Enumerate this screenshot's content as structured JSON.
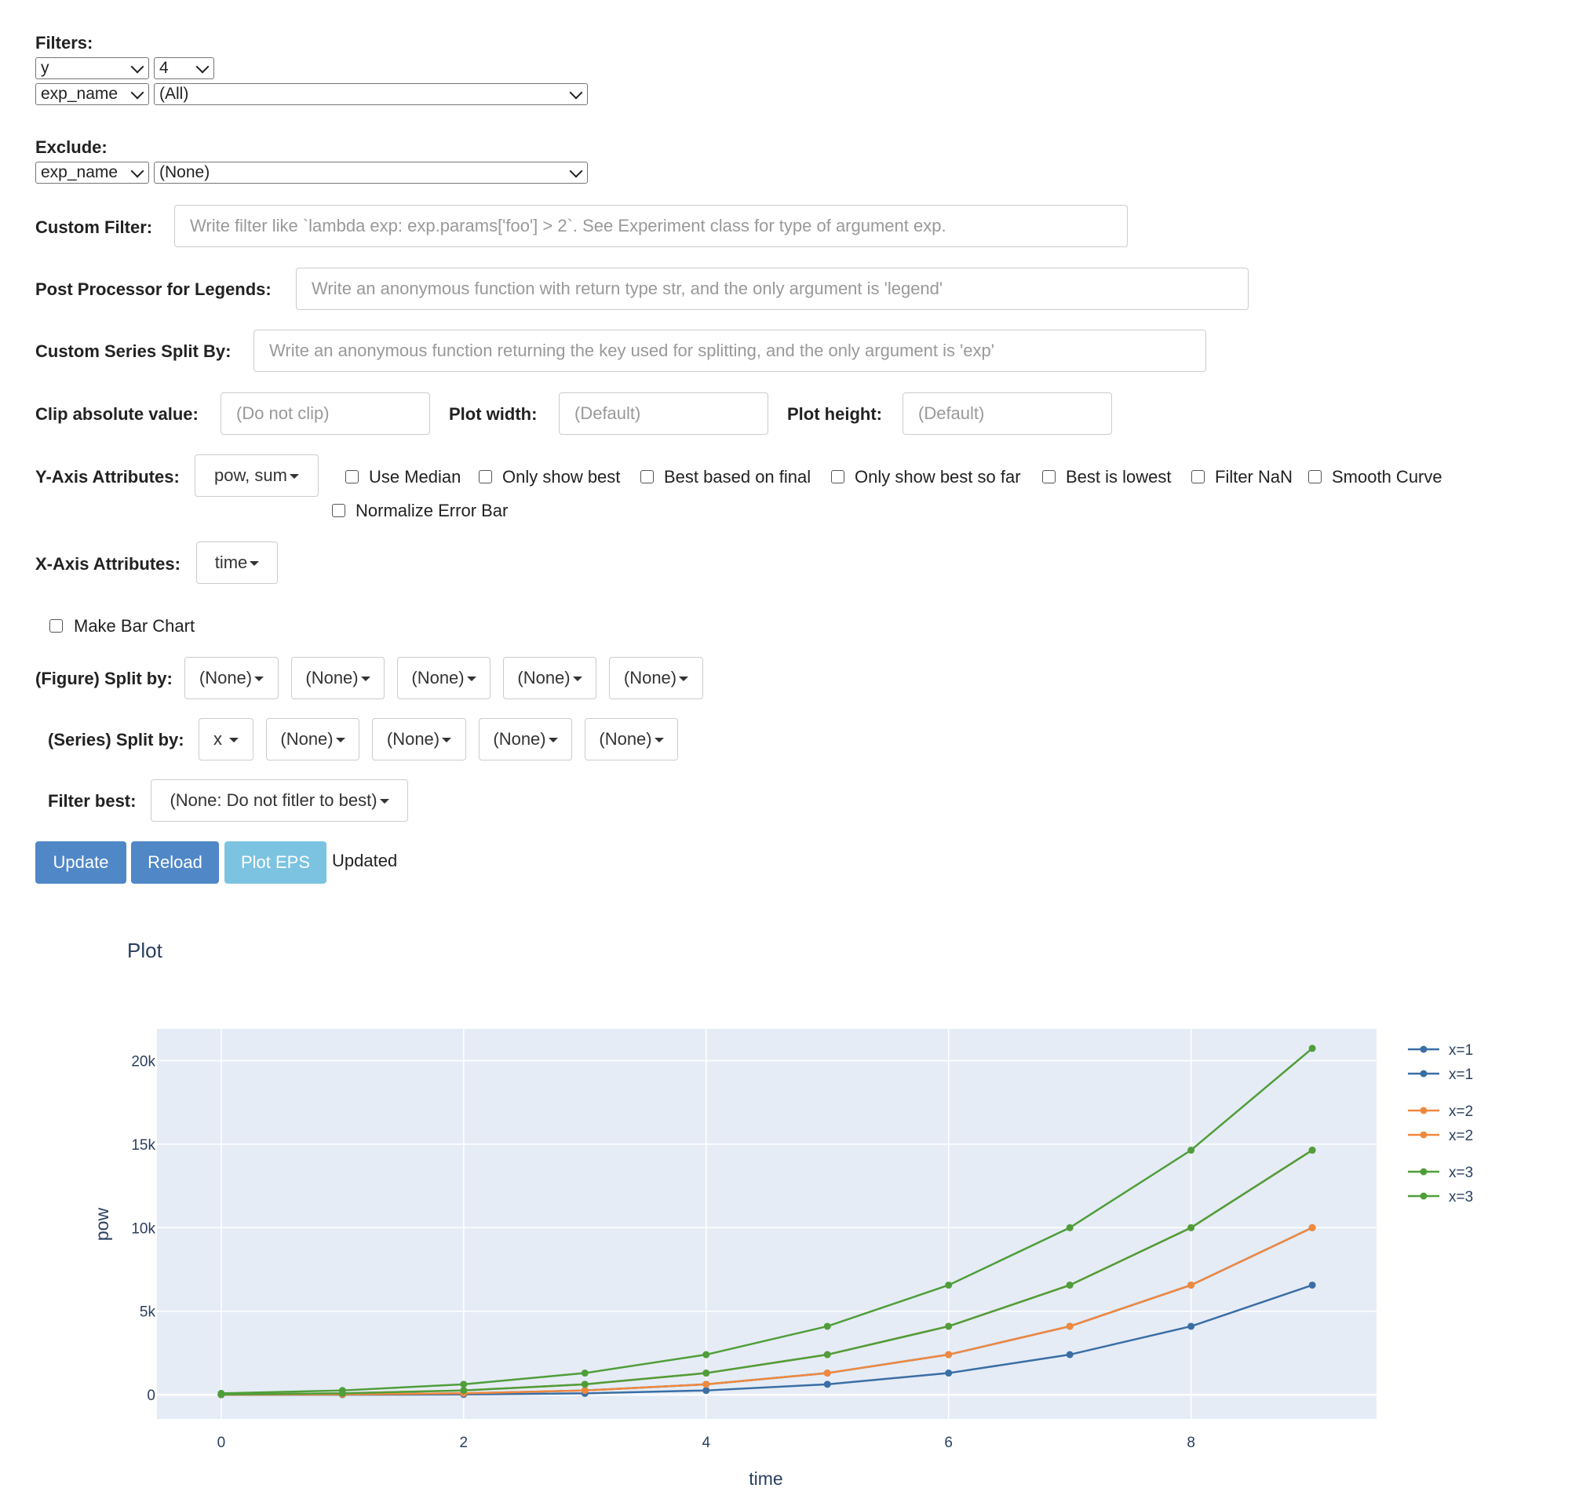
{
  "filters": {
    "label": "Filters:",
    "rows": [
      {
        "key": "y",
        "value": "4"
      },
      {
        "key": "exp_name",
        "value": "(All)"
      }
    ]
  },
  "exclude": {
    "label": "Exclude:",
    "key": "exp_name",
    "value": "(None)"
  },
  "custom_filter": {
    "label": "Custom Filter:",
    "placeholder": "Write filter like `lambda exp: exp.params['foo'] > 2`. See Experiment class for type of argument exp."
  },
  "post_processor": {
    "label": "Post Processor for Legends:",
    "placeholder": "Write an anonymous function with return type str, and the only argument is 'legend'"
  },
  "custom_split": {
    "label": "Custom Series Split By:",
    "placeholder": "Write an anonymous function returning the key used for splitting, and the only argument is 'exp'"
  },
  "clip": {
    "label": "Clip absolute value:",
    "placeholder": "(Do not clip)"
  },
  "plot_width": {
    "label": "Plot width:",
    "placeholder": "(Default)"
  },
  "plot_height": {
    "label": "Plot height:",
    "placeholder": "(Default)"
  },
  "y_axis": {
    "label": "Y-Axis Attributes:",
    "value": "pow, sum",
    "options": [
      "Use Median",
      "Only show best",
      "Best based on final",
      "Only show best so far",
      "Best is lowest",
      "Filter NaN",
      "Smooth Curve",
      "Normalize Error Bar"
    ]
  },
  "x_axis": {
    "label": "X-Axis Attributes:",
    "value": "time"
  },
  "bar_chart": {
    "label": "Make Bar Chart"
  },
  "figure_split": {
    "label": "(Figure) Split by:",
    "values": [
      "(None)",
      "(None)",
      "(None)",
      "(None)",
      "(None)"
    ]
  },
  "series_split": {
    "label": "(Series) Split by:",
    "values": [
      "x",
      "(None)",
      "(None)",
      "(None)",
      "(None)"
    ]
  },
  "filter_best": {
    "label": "Filter best:",
    "value": "(None: Do not fitler to best)"
  },
  "actions": {
    "update": "Update",
    "reload": "Reload",
    "plot_eps": "Plot EPS",
    "status": "Updated"
  },
  "colors": {
    "blue": "#3a6ea5",
    "orange": "#f0883e",
    "green": "#4f9e3a",
    "primary": "#5087c7",
    "info": "#7cc3e2",
    "plot_bg": "#e5ecf6"
  },
  "chart_data": {
    "type": "line",
    "title": "Plot",
    "xlabel": "time",
    "ylabel": "pow",
    "x": [
      0,
      1,
      2,
      3,
      4,
      5,
      6,
      7,
      8,
      9
    ],
    "xlim": [
      -0.53,
      9.53
    ],
    "ylim": [
      -1450,
      21900
    ],
    "xticks": [
      0,
      2,
      4,
      6,
      8
    ],
    "yticks": [
      0,
      5000,
      10000,
      15000,
      20000
    ],
    "ytick_labels": [
      "0",
      "5k",
      "10k",
      "15k",
      "20k"
    ],
    "grid": true,
    "legend_position": "right",
    "series": [
      {
        "name": "x=1",
        "values": [
          0,
          1,
          16,
          81,
          256,
          625,
          1296,
          2401,
          4096,
          6561
        ],
        "color": "blue"
      },
      {
        "name": "x=1",
        "values": [
          1,
          16,
          81,
          256,
          625,
          1296,
          2401,
          4096,
          6561,
          10000
        ],
        "color": "blue"
      },
      {
        "name": "x=2",
        "values": [
          1,
          16,
          81,
          256,
          625,
          1296,
          2401,
          4096,
          6561,
          10000
        ],
        "color": "orange"
      },
      {
        "name": "x=2",
        "values": [
          16,
          81,
          256,
          625,
          1296,
          2401,
          4096,
          6561,
          10000,
          14641
        ],
        "color": "orange"
      },
      {
        "name": "x=3",
        "values": [
          16,
          81,
          256,
          625,
          1296,
          2401,
          4096,
          6561,
          10000,
          14641
        ],
        "color": "green"
      },
      {
        "name": "x=3",
        "values": [
          81,
          256,
          625,
          1296,
          2401,
          4096,
          6561,
          10000,
          14641,
          20736
        ],
        "color": "green"
      }
    ]
  }
}
